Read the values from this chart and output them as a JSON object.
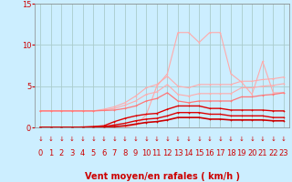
{
  "background_color": "#cceeff",
  "grid_color": "#aacccc",
  "x_labels": [
    "0",
    "1",
    "2",
    "3",
    "4",
    "5",
    "6",
    "7",
    "8",
    "9",
    "10",
    "11",
    "12",
    "13",
    "14",
    "15",
    "16",
    "17",
    "18",
    "19",
    "20",
    "21",
    "22",
    "23"
  ],
  "xlabel": "Vent moyen/en rafales ( km/h )",
  "ylim": [
    0,
    15
  ],
  "yticks": [
    0,
    5,
    10,
    15
  ],
  "series": [
    {
      "name": "spike_light",
      "color": "#ffaaaa",
      "linewidth": 0.8,
      "markersize": 2.0,
      "y": [
        0.0,
        0.0,
        0.0,
        0.0,
        0.0,
        0.0,
        0.0,
        0.0,
        0.0,
        0.3,
        1.5,
        5.0,
        6.5,
        11.5,
        11.5,
        10.3,
        11.5,
        11.5,
        6.5,
        5.5,
        4.0,
        8.0,
        4.2,
        4.2
      ]
    },
    {
      "name": "line_upper1",
      "color": "#ffaaaa",
      "linewidth": 0.8,
      "markersize": 2.0,
      "y": [
        2.0,
        2.0,
        2.0,
        2.0,
        2.0,
        2.0,
        2.2,
        2.5,
        3.0,
        3.8,
        4.8,
        5.2,
        6.2,
        5.0,
        4.8,
        5.2,
        5.2,
        5.2,
        5.2,
        5.6,
        5.6,
        5.8,
        5.9,
        6.1
      ]
    },
    {
      "name": "line_upper2",
      "color": "#ffaaaa",
      "linewidth": 0.8,
      "markersize": 2.0,
      "y": [
        2.0,
        2.0,
        2.0,
        2.0,
        2.0,
        2.0,
        2.1,
        2.3,
        2.7,
        3.2,
        4.0,
        4.3,
        5.2,
        4.0,
        3.8,
        4.1,
        4.1,
        4.1,
        4.1,
        4.8,
        4.8,
        5.0,
        5.1,
        5.3
      ]
    },
    {
      "name": "line_mid",
      "color": "#ff7777",
      "linewidth": 0.9,
      "markersize": 2.0,
      "y": [
        2.0,
        2.0,
        2.0,
        2.0,
        2.0,
        2.0,
        2.05,
        2.1,
        2.3,
        2.6,
        3.2,
        3.5,
        4.2,
        3.2,
        3.0,
        3.2,
        3.2,
        3.2,
        3.2,
        3.7,
        3.7,
        3.9,
        4.0,
        4.2
      ]
    },
    {
      "name": "line_dark1",
      "color": "#dd0000",
      "linewidth": 1.0,
      "markersize": 2.0,
      "y": [
        0.0,
        0.0,
        0.0,
        0.0,
        0.05,
        0.1,
        0.2,
        0.7,
        1.1,
        1.4,
        1.6,
        1.7,
        2.2,
        2.6,
        2.6,
        2.6,
        2.3,
        2.3,
        2.1,
        2.1,
        2.1,
        2.1,
        2.0,
        2.0
      ]
    },
    {
      "name": "line_dark2",
      "color": "#dd0000",
      "linewidth": 1.0,
      "markersize": 2.0,
      "y": [
        0.0,
        0.0,
        0.0,
        0.0,
        0.02,
        0.05,
        0.1,
        0.3,
        0.5,
        0.8,
        1.0,
        1.1,
        1.4,
        1.8,
        1.8,
        1.8,
        1.6,
        1.6,
        1.4,
        1.4,
        1.4,
        1.4,
        1.2,
        1.2
      ]
    },
    {
      "name": "line_darkest",
      "color": "#cc0000",
      "linewidth": 1.2,
      "markersize": 2.0,
      "y": [
        0.0,
        0.0,
        0.0,
        0.0,
        0.0,
        0.02,
        0.05,
        0.1,
        0.2,
        0.4,
        0.6,
        0.7,
        0.9,
        1.2,
        1.2,
        1.2,
        1.0,
        1.0,
        0.9,
        0.9,
        0.9,
        0.9,
        0.8,
        0.8
      ]
    }
  ],
  "tick_color": "#cc0000",
  "tick_fontsize": 6,
  "xlabel_fontsize": 7,
  "xlabel_fontweight": "bold"
}
